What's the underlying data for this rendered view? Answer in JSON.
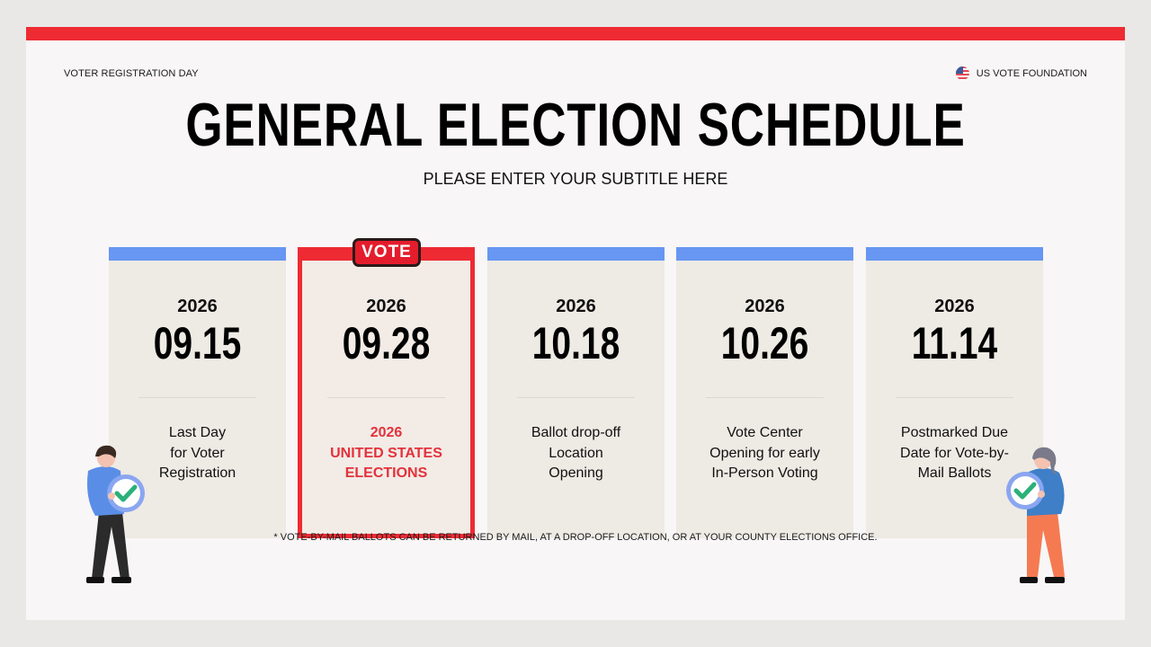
{
  "header": {
    "left_label": "VOTER REGISTRATION DAY",
    "right_label": "US VOTE FOUNDATION",
    "right_icon": "us-flag-icon"
  },
  "title": "GENERAL ELECTION SCHEDULE",
  "subtitle": "PLEASE ENTER YOUR SUBTITLE HERE",
  "badge": "VOTE",
  "cards": [
    {
      "year": "2026",
      "date": "09.15",
      "description": "Last Day\nfor Voter\nRegistration",
      "highlighted": false
    },
    {
      "year": "2026",
      "date": "09.28",
      "description": "2026\nUNITED STATES\nELECTIONS",
      "highlighted": true
    },
    {
      "year": "2026",
      "date": "10.18",
      "description": "Ballot drop-off\nLocation\nOpening",
      "highlighted": false
    },
    {
      "year": "2026",
      "date": "10.26",
      "description": "Vote Center\nOpening for early\nIn-Person Voting",
      "highlighted": false
    },
    {
      "year": "2026",
      "date": "11.14",
      "description": "Postmarked Due\nDate for Vote-by-\nMail Ballots",
      "highlighted": false
    }
  ],
  "footnote": "* VOTE-BY-MAIL BALLOTS CAN BE RETURNED BY MAIL, AT A DROP-OFF LOCATION, OR AT YOUR COUNTY ELECTIONS OFFICE.",
  "colors": {
    "accent_red": "#ee2a33",
    "card_bar_blue": "#6796f3",
    "card_bg": "#eeeae4",
    "slide_bg": "#f8f6f6",
    "highlight_text": "#e4313a"
  },
  "illustrations": [
    "man-holding-checkmark",
    "woman-holding-checkmark"
  ]
}
